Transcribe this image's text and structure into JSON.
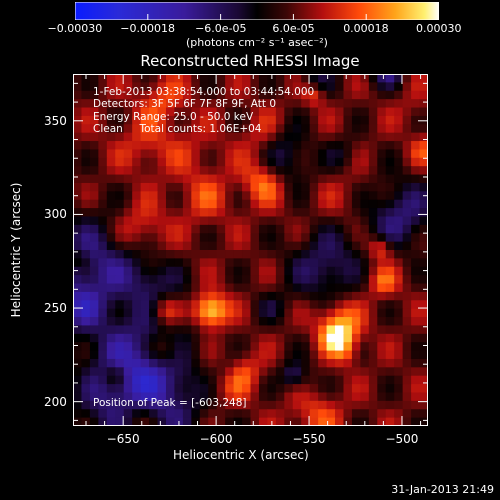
{
  "colorbar": {
    "tick_labels": [
      "-0.00030",
      "-0.00018",
      "-6.0e-05",
      "6.0e-05",
      "0.00018",
      "0.00030"
    ],
    "min": -0.0003,
    "max": 0.0003,
    "unit_label": "(photons cm⁻² s⁻¹ asec⁻²)"
  },
  "chart_data": {
    "type": "heatmap",
    "title": "Reconstructed RHESSI Image",
    "xlabel": "Heliocentric X (arcsec)",
    "ylabel": "Heliocentric Y (arcsec)",
    "xlim": [
      -677,
      -486
    ],
    "ylim": [
      187,
      375
    ],
    "x_ticks": [
      -650,
      -600,
      -550,
      -500
    ],
    "x_tick_labels": [
      "-650",
      "-600",
      "-550",
      "-500"
    ],
    "y_ticks": [
      200,
      250,
      300,
      350
    ],
    "y_tick_labels": [
      "200",
      "250",
      "300",
      "350"
    ],
    "peak": [
      -603,
      248
    ],
    "annotations": [
      "1-Feb-2013 03:38:54.000 to 03:44:54.000",
      "Detectors: 3F 5F 6F 7F 8F 9F, Att 0",
      "Energy Range: 25.0 - 50.0 keV",
      "Clean     Total counts: 1.06E+04"
    ],
    "peak_label": "Position of Peak = [-603,248]"
  },
  "timestamp": "31-Jan-2013 21:49"
}
